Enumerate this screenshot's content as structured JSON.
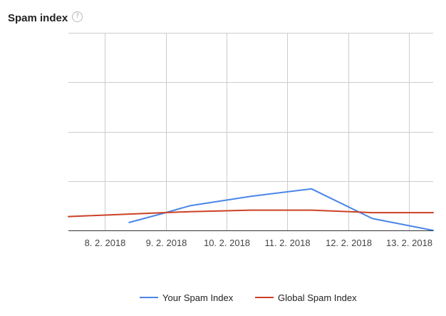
{
  "header": {
    "title": "Spam index",
    "help_icon": "question-mark-icon"
  },
  "chart_data": {
    "type": "line",
    "title": "Spam index",
    "xlabel": "",
    "ylabel": "",
    "x_tick_labels": [
      "8. 2. 2018",
      "9. 2. 2018",
      "10. 2. 2018",
      "11. 2. 2018",
      "12. 2. 2018",
      "13. 2. 2018"
    ],
    "x_range": [
      7.4,
      13.4
    ],
    "ylim": [
      0,
      4
    ],
    "grid": true,
    "legend_position": "bottom",
    "series": [
      {
        "name": "Your Spam Index",
        "color": "#4a86e8",
        "x": [
          8.4,
          9.0,
          9.4,
          10.4,
          11.4,
          12.4,
          13.4
        ],
        "y": [
          0.16,
          0.36,
          0.5,
          0.69,
          0.84,
          0.24,
          0.0
        ]
      },
      {
        "name": "Global Spam Index",
        "color": "#cc4125",
        "x": [
          7.4,
          8.4,
          9.4,
          10.4,
          11.4,
          12.4,
          13.4
        ],
        "y": [
          0.28,
          0.33,
          0.38,
          0.41,
          0.41,
          0.36,
          0.36
        ]
      }
    ]
  }
}
